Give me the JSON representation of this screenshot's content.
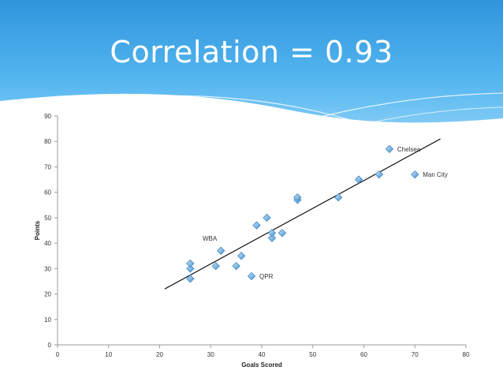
{
  "slide": {
    "title": "Correlation = 0.93",
    "background_color": "#ffffff",
    "header_colors": [
      "#2f95dd",
      "#56b7f0",
      "#8fd1f7"
    ]
  },
  "chart_data": {
    "type": "scatter",
    "title": "Correlation = 0.93",
    "xlabel": "Goals Scored",
    "ylabel": "Points",
    "xlim": [
      0,
      80
    ],
    "ylim": [
      0,
      90
    ],
    "xticks": [
      0,
      10,
      20,
      30,
      40,
      50,
      60,
      70,
      80
    ],
    "yticks": [
      0,
      10,
      20,
      30,
      40,
      50,
      60,
      70,
      80,
      90
    ],
    "grid": false,
    "marker_color": "#5ba3d9",
    "trendline_color": "#000000",
    "points": [
      {
        "x": 26,
        "y": 26,
        "label": ""
      },
      {
        "x": 26,
        "y": 30,
        "label": ""
      },
      {
        "x": 26,
        "y": 32,
        "label": ""
      },
      {
        "x": 31,
        "y": 31,
        "label": ""
      },
      {
        "x": 32,
        "y": 37,
        "label": "WBA"
      },
      {
        "x": 35,
        "y": 31,
        "label": ""
      },
      {
        "x": 36,
        "y": 35,
        "label": ""
      },
      {
        "x": 38,
        "y": 27,
        "label": "QPR"
      },
      {
        "x": 39,
        "y": 47,
        "label": ""
      },
      {
        "x": 41,
        "y": 50,
        "label": ""
      },
      {
        "x": 42,
        "y": 42,
        "label": ""
      },
      {
        "x": 42,
        "y": 44,
        "label": ""
      },
      {
        "x": 44,
        "y": 44,
        "label": ""
      },
      {
        "x": 47,
        "y": 57,
        "label": ""
      },
      {
        "x": 47,
        "y": 58,
        "label": ""
      },
      {
        "x": 55,
        "y": 58,
        "label": ""
      },
      {
        "x": 59,
        "y": 65,
        "label": ""
      },
      {
        "x": 63,
        "y": 67,
        "label": ""
      },
      {
        "x": 65,
        "y": 77,
        "label": "Chelsea"
      },
      {
        "x": 70,
        "y": 67,
        "label": "Man City"
      }
    ],
    "trendline": {
      "x": [
        21,
        75
      ],
      "y": [
        22,
        81
      ]
    }
  }
}
